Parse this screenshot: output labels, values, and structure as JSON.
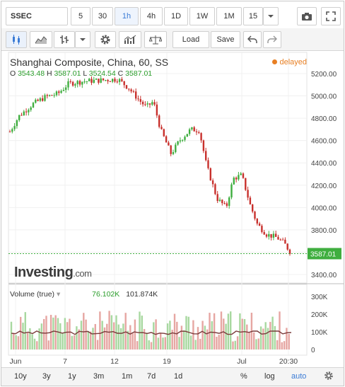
{
  "toolbar": {
    "symbol": "SSEC",
    "intervals": [
      "5",
      "30",
      "1h",
      "4h",
      "1D",
      "1W",
      "1M",
      "15"
    ],
    "active_interval": "1h",
    "load_label": "Load",
    "save_label": "Save"
  },
  "chart": {
    "title": "Shanghai Composite, China, 60, SS",
    "delayed_label": "delayed",
    "ohlc": {
      "o_label": "O",
      "o": "3543.48",
      "h_label": "H",
      "h": "3587.01",
      "l_label": "L",
      "l": "3524.54",
      "c_label": "C",
      "c": "3587.01"
    },
    "last_price": "3587.01",
    "logo_main": "Investing",
    "logo_suffix": ".com",
    "y_ticks": [
      "5200.00",
      "5000.00",
      "4800.00",
      "4600.00",
      "4400.00",
      "4200.00",
      "4000.00",
      "3800.00",
      "3600.00",
      "3400.00"
    ],
    "x_ticks": [
      "Jun",
      "7",
      "12",
      "19",
      "Jul",
      "20:30"
    ],
    "colors": {
      "up": "#3fae3f",
      "down": "#c8302c",
      "last_line": "#3fae3f"
    }
  },
  "volume": {
    "label": "Volume (true)",
    "value1": "76.102K",
    "value2": "101.874K",
    "y_ticks": [
      "300K",
      "200K",
      "100K",
      "0"
    ]
  },
  "bottom": {
    "ranges": [
      "10y",
      "3y",
      "1y",
      "3m",
      "1m",
      "7d",
      "1d"
    ],
    "percent": "%",
    "log": "log",
    "auto": "auto"
  }
}
